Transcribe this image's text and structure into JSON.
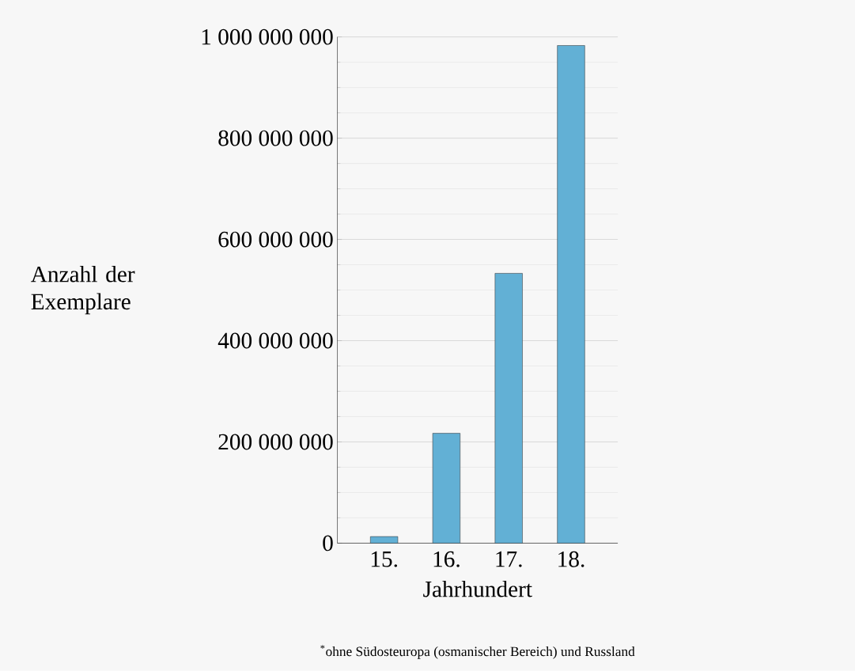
{
  "chart_data": {
    "type": "bar",
    "xlabel": "Jahrhundert",
    "ylabel": "Anzahl der Exemplare",
    "categories": [
      "15.",
      "16.",
      "17.",
      "18."
    ],
    "values": [
      13000000,
      217000000,
      533000000,
      983000000
    ],
    "color": "#62b0d5",
    "ylim": [
      0,
      1000000000
    ],
    "yticks": [
      {
        "value": 0,
        "label": "0"
      },
      {
        "value": 200000000,
        "label": "200 000 000"
      },
      {
        "value": 400000000,
        "label": "400 000 000"
      },
      {
        "value": 600000000,
        "label": "600 000 000"
      },
      {
        "value": 800000000,
        "label": "800 000 000"
      },
      {
        "value": 1000000000,
        "label": "1 000 000 000"
      }
    ],
    "grid": "y",
    "annotations": [
      "$^{*}$ohne Südosteuropa (osmanischer Bereich) und Russland"
    ]
  }
}
